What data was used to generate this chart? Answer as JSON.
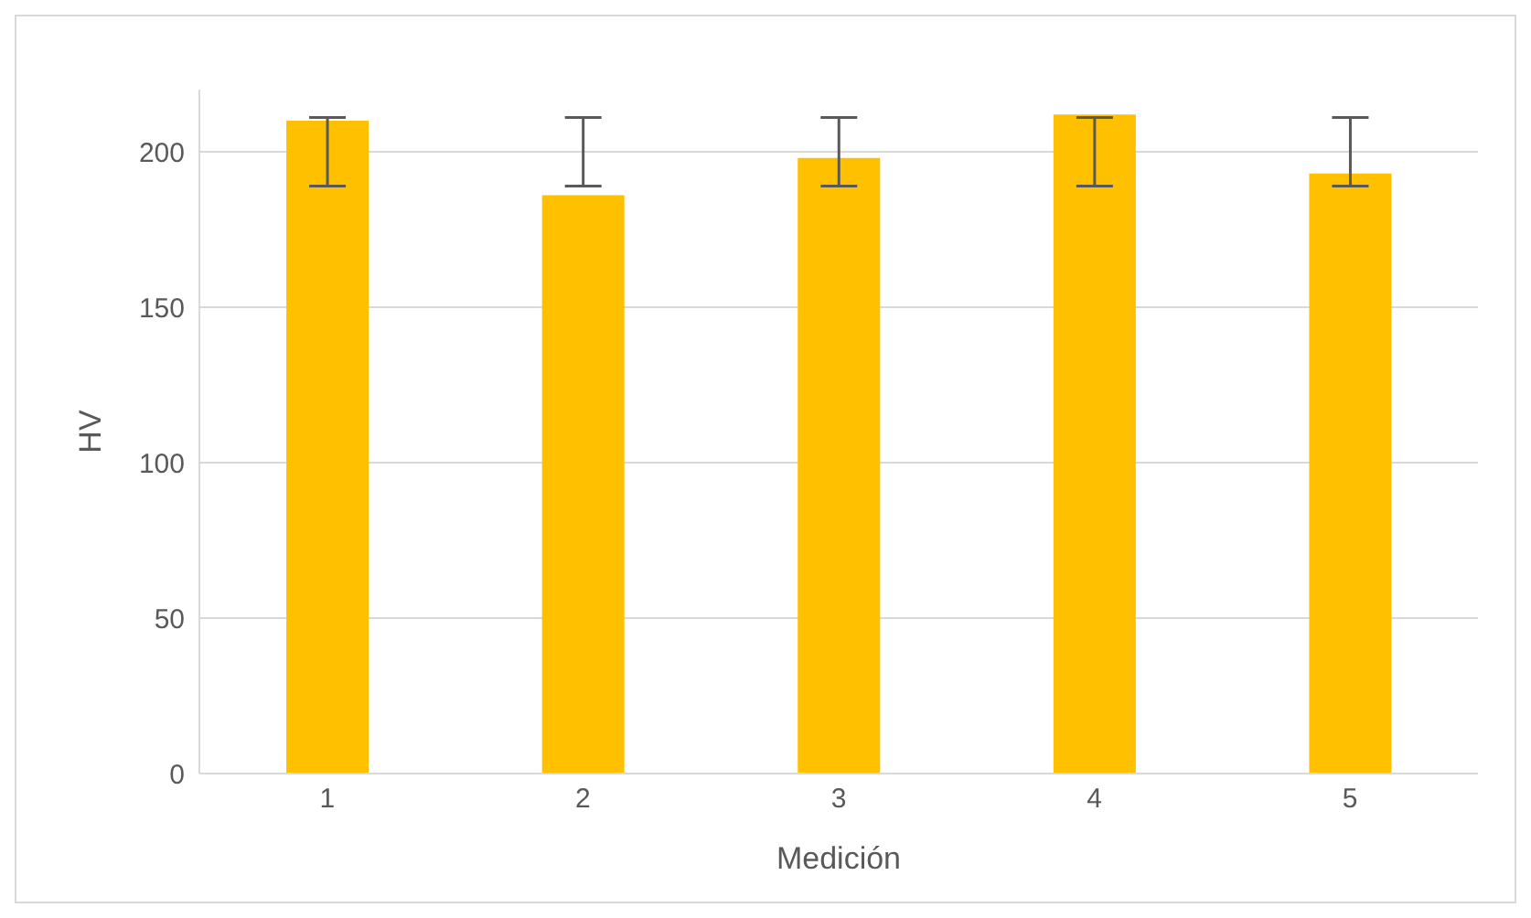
{
  "chart_data": {
    "type": "bar",
    "xlabel": "Medición",
    "ylabel": "HV",
    "categories": [
      "1",
      "2",
      "3",
      "4",
      "5"
    ],
    "values": [
      210,
      186,
      198,
      212,
      193
    ],
    "color": "#ffc000",
    "errors": [
      [
        189,
        211
      ],
      [
        189,
        211
      ],
      [
        189,
        211
      ],
      [
        189,
        211
      ],
      [
        189,
        211
      ]
    ],
    "ylim": [
      0,
      220
    ],
    "yticks": [
      0,
      50,
      100,
      150,
      200
    ],
    "grid": "y",
    "legend": false
  }
}
